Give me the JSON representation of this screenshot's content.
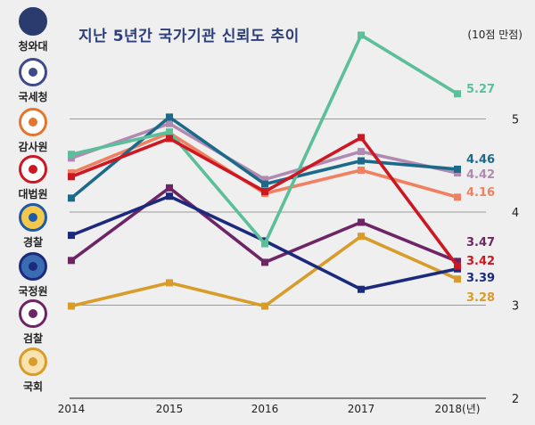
{
  "chart_data": {
    "type": "line",
    "title": "지난 5년간 국가기관 신뢰도 추이",
    "unit_note": "(10점 만점)",
    "x": [
      "2014",
      "2015",
      "2016",
      "2017",
      "2018(년)"
    ],
    "ylim": [
      2,
      5.8
    ],
    "yticks": [
      "2",
      "3",
      "4",
      "5"
    ],
    "grid": true,
    "series": [
      {
        "name": "청와대",
        "color": "#5bbf9a",
        "values": [
          4.62,
          4.86,
          3.66,
          5.9,
          5.27
        ],
        "label": "5.27"
      },
      {
        "name": "국세청",
        "color": "#1b6a8a",
        "values": [
          4.15,
          5.02,
          4.3,
          4.55,
          4.46
        ],
        "label": "4.46"
      },
      {
        "name": "감사원",
        "color": "#f08060",
        "values": [
          4.42,
          4.85,
          4.2,
          4.45,
          4.16
        ],
        "label": "4.16"
      },
      {
        "name": "대법원",
        "color": "#cc1822",
        "values": [
          4.38,
          4.79,
          4.22,
          4.8,
          3.42
        ],
        "label": "3.42"
      },
      {
        "name": "경찰",
        "color": "#b08ab0",
        "values": [
          4.58,
          4.95,
          4.35,
          4.65,
          4.42
        ],
        "label": "4.42"
      },
      {
        "name": "국정원",
        "color": "#1c2a7d",
        "values": [
          3.75,
          4.17,
          3.69,
          3.17,
          3.39
        ],
        "label": "3.39"
      },
      {
        "name": "검찰",
        "color": "#6d2566",
        "values": [
          3.48,
          4.26,
          3.46,
          3.89,
          3.47
        ],
        "label": "3.47"
      },
      {
        "name": "국회",
        "color": "#d89c2a",
        "values": [
          2.99,
          3.24,
          2.99,
          3.74,
          3.28
        ],
        "label": "3.28"
      }
    ]
  },
  "legend_items": [
    {
      "name": "청와대",
      "icon": "blue-house-seal-icon",
      "ring": "#2a3b6e",
      "fill": "#2a3b6e"
    },
    {
      "name": "국세청",
      "icon": "nts-emblem-icon",
      "ring": "#3f4a8a",
      "fill": "#ffffff"
    },
    {
      "name": "감사원",
      "icon": "bai-emblem-icon",
      "ring": "#e2762f",
      "fill": "#ffffff"
    },
    {
      "name": "대법원",
      "icon": "supreme-court-emblem-icon",
      "ring": "#cc1822",
      "fill": "#ffffff"
    },
    {
      "name": "경찰",
      "icon": "police-badge-icon",
      "ring": "#1f5aa8",
      "fill": "#f4c84b"
    },
    {
      "name": "국정원",
      "icon": "nis-emblem-icon",
      "ring": "#1c2a7d",
      "fill": "#3a6cb2"
    },
    {
      "name": "검찰",
      "icon": "prosecution-emblem-icon",
      "ring": "#6d2566",
      "fill": "#ffffff"
    },
    {
      "name": "국회",
      "icon": "national-assembly-emblem-icon",
      "ring": "#d89c2a",
      "fill": "#f7e2b0"
    }
  ]
}
